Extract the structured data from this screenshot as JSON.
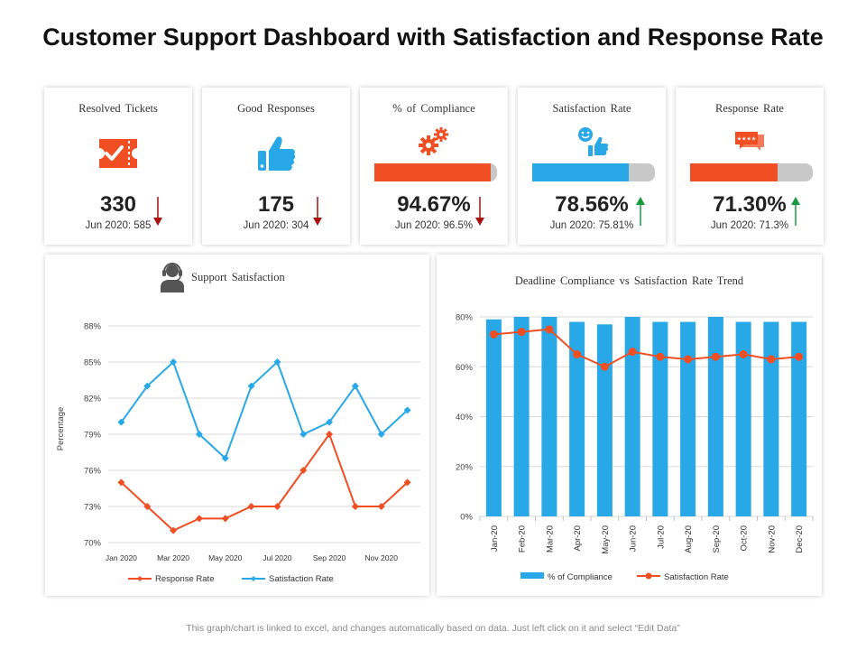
{
  "page": {
    "title": "Customer Support Dashboard with Satisfaction and Response Rate",
    "footer": "This graph/chart is linked to excel, and changes automatically based on data. Just left click on it and select “Edit Data”"
  },
  "colors": {
    "red": "#f04e23",
    "blue": "#29a8e8",
    "grey": "#c8c8c8",
    "down": "#a80f0f",
    "up": "#129a3d"
  },
  "kpis": [
    {
      "title": "Resolved Tickets",
      "icon": "ticket-icon",
      "value": "330",
      "prev": "Jun 2020: 585",
      "trend": "down"
    },
    {
      "title": "Good Responses",
      "icon": "thumbs-up-icon",
      "value": "175",
      "prev": "Jun 2020: 304",
      "trend": "down"
    },
    {
      "title": "% of Compliance",
      "icon": "gears-icon",
      "value": "94.67%",
      "prev": "Jun 2020: 96.5%",
      "trend": "down",
      "progress": 0.9467,
      "bar_color": "#f04e23"
    },
    {
      "title": "Satisfaction Rate",
      "icon": "smiley-thumbs-icon",
      "value": "78.56%",
      "prev": "Jun 2020: 75.81%",
      "trend": "up",
      "progress": 0.7856,
      "bar_color": "#29a8e8"
    },
    {
      "title": "Response Rate",
      "icon": "rating-chat-icon",
      "value": "71.30%",
      "prev": "Jun 2020: 71.3%",
      "trend": "up",
      "progress": 0.713,
      "bar_color": "#f04e23"
    }
  ],
  "chart_data": [
    {
      "type": "line",
      "title": "Support Satisfaction",
      "ylabel": "Percentage",
      "xlabel": "",
      "ylim": [
        70,
        88
      ],
      "yticks": [
        70,
        73,
        76,
        79,
        82,
        85,
        88
      ],
      "ytick_labels": [
        "70%",
        "73%",
        "76%",
        "79%",
        "82%",
        "85%",
        "88%"
      ],
      "categories": [
        "Jan 2020",
        "Feb 2020",
        "Mar 2020",
        "Apr 2020",
        "May 2020",
        "Jun 2020",
        "Jul 2020",
        "Aug 2020",
        "Sep 2020",
        "Oct 2020",
        "Nov 2020",
        "Dec 2020"
      ],
      "xtick_labels": [
        "Jan 2020",
        "",
        "Mar 2020",
        "",
        "May 2020",
        "",
        "Jul 2020",
        "",
        "Sep 2020",
        "",
        "Nov 2020",
        ""
      ],
      "series": [
        {
          "name": "Response Rate",
          "color": "#f04e23",
          "values": [
            75,
            73,
            71,
            72,
            72,
            73,
            73,
            76,
            79,
            73,
            73,
            75
          ]
        },
        {
          "name": "Satisfaction Rate",
          "color": "#29a8e8",
          "values": [
            80,
            83,
            85,
            79,
            77,
            83,
            85,
            79,
            80,
            83,
            79,
            81
          ]
        }
      ],
      "legend": "bottom"
    },
    {
      "type": "bar",
      "title": "Deadline Compliance vs Satisfaction Rate Trend",
      "ylim": [
        0,
        80
      ],
      "yticks": [
        0,
        20,
        40,
        60,
        80
      ],
      "ytick_labels": [
        "0%",
        "20%",
        "40%",
        "60%",
        "80%"
      ],
      "categories": [
        "Jan-20",
        "Feb-20",
        "Mar-20",
        "Apr-20",
        "May-20",
        "Jun-20",
        "Jul-20",
        "Aug-20",
        "Sep-20",
        "Oct-20",
        "Nov-20",
        "Dec-20"
      ],
      "series": [
        {
          "name": "% of Compliance",
          "type": "bar",
          "color": "#29a8e8",
          "values": [
            79,
            80,
            80,
            78,
            77,
            80,
            78,
            78,
            80,
            78,
            78,
            78
          ]
        },
        {
          "name": "Satisfaction Rate",
          "type": "line",
          "color": "#f04e23",
          "values": [
            73,
            74,
            75,
            65,
            60,
            66,
            64,
            63,
            64,
            65,
            63,
            64
          ]
        }
      ],
      "legend": "bottom"
    }
  ]
}
